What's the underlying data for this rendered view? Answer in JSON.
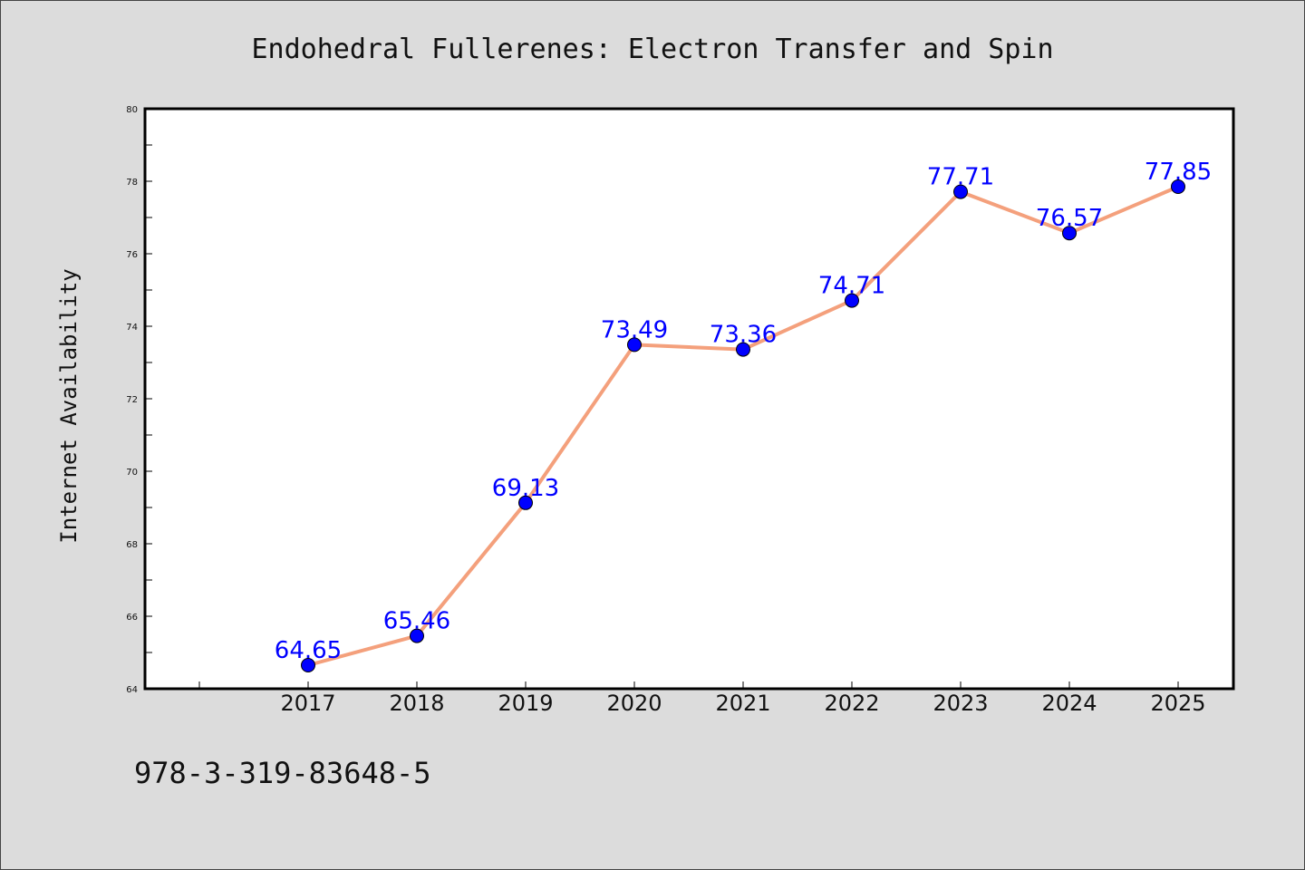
{
  "footer_code": "978-3-319-83648-5",
  "chart_data": {
    "type": "line",
    "title": "Endohedral Fullerenes: Electron Transfer and Spin",
    "xlabel": "",
    "ylabel": "Internet Availability",
    "categories": [
      "2017",
      "2018",
      "2019",
      "2020",
      "2021",
      "2022",
      "2023",
      "2024",
      "2025"
    ],
    "series": [
      {
        "values": [
          64.65,
          65.46,
          69.13,
          73.49,
          73.36,
          74.71,
          77.71,
          76.57,
          77.85
        ],
        "labels": [
          "64.65",
          "65.46",
          "69.13",
          "73.49",
          "73.36",
          "74.71",
          "77.71",
          "76.57",
          "77.85"
        ],
        "line_color": "#f4a07c",
        "marker_color": "#0000ff"
      }
    ],
    "ylim": [
      64,
      80
    ],
    "yticks": [
      64,
      66,
      68,
      70,
      72,
      74,
      76,
      78,
      80
    ],
    "ytick_labels": [
      "64",
      "66",
      "68",
      "70",
      "72",
      "74",
      "76",
      "78",
      "80"
    ],
    "grid": false,
    "legend": "none",
    "colors": {
      "background": "#dcdcdc",
      "plot_area": "#ffffff",
      "axis": "#000000",
      "label": "#0000ff"
    }
  }
}
